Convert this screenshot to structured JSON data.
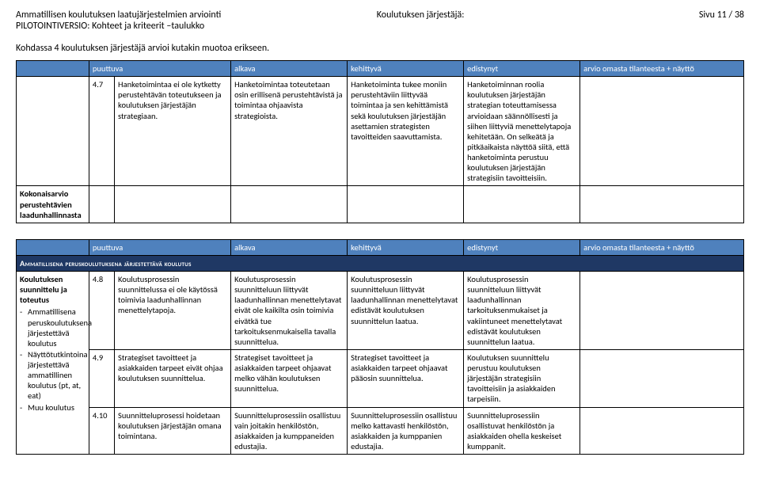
{
  "colors": {
    "header_bg": "#4f81bd",
    "section_bg": "#1f3864"
  },
  "page_header": {
    "title1": "Ammatillisen koulutuksen laatujärjestelmien arviointi",
    "title2": "PILOTOINTIVERSIO: Kohteet ja kriteerit –taulukko",
    "center": "Koulutuksen järjestäjä:",
    "right": "Sivu 11 / 38"
  },
  "intro": "Kohdassa 4 koulutuksen järjestäjä arvioi kutakin muotoa erikseen.",
  "col_headers": {
    "puuttuva": "puuttuva",
    "alakava": "alkava",
    "kehittyva": "kehittyvä",
    "edistynyt": "edistynyt",
    "arvio": "arvio omasta tilanteesta + näyttö"
  },
  "table1": {
    "row": {
      "num": "4.7",
      "puuttuva": "Hanketoimintaa ei ole kytketty perustehtävän toteutukseen ja koulutuksen järjestäjän strategiaan.",
      "alakava": "Hanketoimintaa toteutetaan osin erillisenä perustehtävistä ja toimintaa ohjaavista strategioista.",
      "kehittyva": "Hanketoiminta tukee moniin perustehtäviin liittyvää toimintaa ja sen kehittämistä sekä koulutuksen järjestäjän asettamien strategisten tavoitteiden saavuttamista.",
      "edistynyt": "Hanketoiminnan roolia koulutuksen järjestäjän strategian toteuttamisessa arvioidaan säännöllisesti ja siihen liittyviä menettelytapoja kehitetään. On selkeätä ja pitkäaikaista näyttöä siitä, että hanketoiminta perustuu koulutuksen järjestäjän strategisiin tavoitteisiin."
    },
    "summary_label": "Kokonaisarvio perustehtävien laadunhallinnasta"
  },
  "table2": {
    "section_title": "Ammatillisena peruskoulutuksena järjestettävä koulutus",
    "rowlabel": {
      "title": "Koulutuksen suunnittelu ja toteutus",
      "items": [
        "Ammatillisena peruskoulutuksena järjestettävä koulutus",
        "Näyttötutkintoina järjestettävä ammatillinen koulutus (pt, at, eat)",
        "Muu koulutus"
      ]
    },
    "rows": [
      {
        "num": "4.8",
        "puuttuva": "Koulutusprosessin suunnittelussa ei ole käytössä toimivia laadunhallinnan menettelytapoja.",
        "alakava": "Koulutusprosessin suunnitteluun liittyvät laadunhallinnan menettelytavat eivät ole kaikilta osin toimivia eivätkä tue tarkoituksenmukaisella tavalla suunnittelua.",
        "kehittyva": "Koulutusprosessin suunnitteluun liittyvät laadunhallinnan menettelytavat edistävät koulutuksen suunnittelun laatua.",
        "edistynyt": "Koulutusprosessin suunnitteluun liittyvät laadunhallinnan tarkoituksenmukaiset ja vakiintuneet menettelytavat edistävät koulutuksen suunnittelun laatua."
      },
      {
        "num": "4.9",
        "puuttuva": "Strategiset tavoitteet ja asiakkaiden tarpeet eivät ohjaa koulutuksen suunnittelua.",
        "alakava": "Strategiset tavoitteet ja asiakkaiden tarpeet ohjaavat melko vähän koulutuksen suunnittelua.",
        "kehittyva": "Strategiset tavoitteet ja asiakkaiden tarpeet ohjaavat pääosin suunnittelua.",
        "edistynyt": "Koulutuksen suunnittelu perustuu koulutuksen järjestäjän strategisiin tavoitteisiin ja asiakkaiden tarpeisiin."
      },
      {
        "num": "4.10",
        "puuttuva": "Suunnitteluprosessi hoidetaan koulutuksen järjestäjän omana toimintana.",
        "alakava": "Suunnitteluprosessiin osallistuu vain joitakin henkilöstön, asiakkaiden ja kumppaneiden edustajia.",
        "kehittyva": "Suunnitteluprosessiin osallistuu melko kattavasti henkilöstön, asiakkaiden ja kumppanien edustajia.",
        "edistynyt": "Suunnitteluprosessiin osallistuvat henkilöstön ja asiakkaiden ohella keskeiset kumppanit."
      }
    ]
  }
}
